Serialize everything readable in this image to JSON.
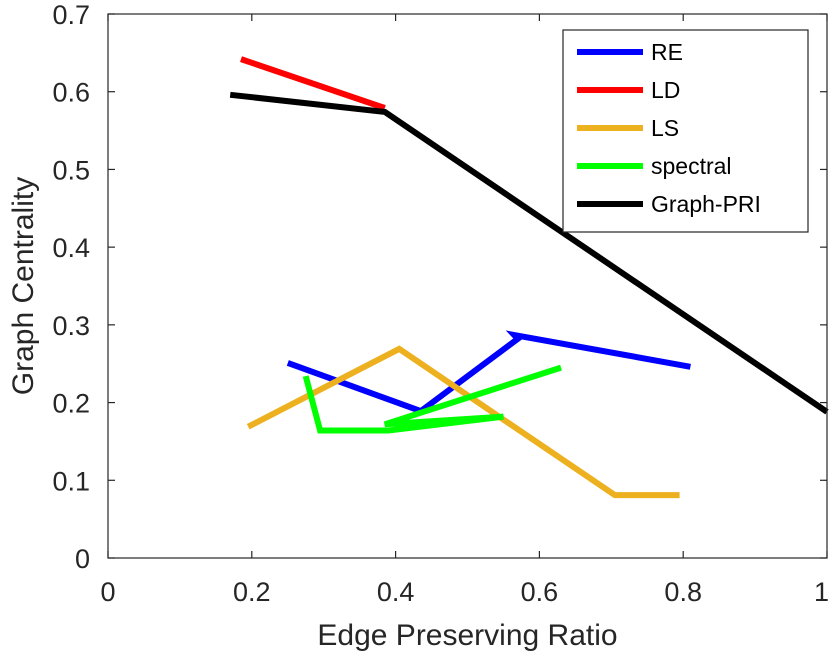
{
  "chart_data": {
    "type": "line",
    "title": "",
    "xlabel": "Edge Preserving Ratio",
    "ylabel": "Graph Centrality",
    "xlim": [
      0,
      1
    ],
    "ylim": [
      0,
      0.7
    ],
    "xticks": [
      0,
      0.2,
      0.4,
      0.6,
      0.8,
      1
    ],
    "xtick_labels": [
      "0",
      "0.2",
      "0.4",
      "0.6",
      "0.8",
      "1"
    ],
    "yticks": [
      0,
      0.1,
      0.2,
      0.3,
      0.4,
      0.5,
      0.6,
      0.7
    ],
    "ytick_labels": [
      "0",
      "0.1",
      "0.2",
      "0.3",
      "0.4",
      "0.5",
      "0.6",
      "0.7"
    ],
    "grid": false,
    "legend_position": "top-right",
    "series": [
      {
        "name": "RE",
        "color": "#0000ff",
        "x": [
          0.25,
          0.435,
          0.57,
          0.565,
          0.81
        ],
        "y": [
          0.251,
          0.189,
          0.282,
          0.287,
          0.246
        ]
      },
      {
        "name": "LD",
        "color": "#ff0000",
        "x": [
          0.185,
          0.385
        ],
        "y": [
          0.642,
          0.579
        ]
      },
      {
        "name": "LS",
        "color": "#edb120",
        "x": [
          0.195,
          0.405,
          0.705,
          0.795
        ],
        "y": [
          0.169,
          0.269,
          0.081,
          0.081
        ]
      },
      {
        "name": "spectral",
        "color": "#00ff00",
        "x": [
          0.275,
          0.295,
          0.39,
          0.55,
          0.385,
          0.63
        ],
        "y": [
          0.234,
          0.164,
          0.164,
          0.182,
          0.172,
          0.245
        ]
      },
      {
        "name": "Graph-PRI",
        "color": "#000000",
        "x": [
          0.17,
          0.385,
          1.0
        ],
        "y": [
          0.596,
          0.574,
          0.188
        ]
      }
    ]
  }
}
